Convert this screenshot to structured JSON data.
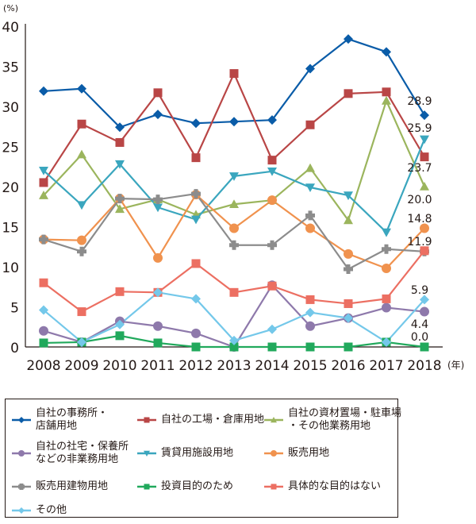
{
  "chart_data": {
    "type": "line",
    "y_unit": "(%)",
    "x_unit": "(年)",
    "ylim": [
      0,
      40
    ],
    "yticks": [
      0,
      5,
      10,
      15,
      20,
      25,
      30,
      35,
      40
    ],
    "x": [
      "2008",
      "2009",
      "2010",
      "2011",
      "2012",
      "2013",
      "2014",
      "2015",
      "2016",
      "2017",
      "2018"
    ],
    "legend_position": "bottom",
    "series": [
      {
        "name": "自社の事務所・\n店舗用地",
        "lines": [
          "自社の事務所・",
          "店舗用地"
        ],
        "color": "#0a5ca8",
        "marker": "diamond",
        "values": [
          31.9,
          32.2,
          27.4,
          29.0,
          27.9,
          28.1,
          28.3,
          34.7,
          38.4,
          36.8,
          28.9
        ],
        "end_label": "28.9"
      },
      {
        "name": "自社の工場・倉庫用地",
        "lines": [
          "自社の工場・倉庫用地"
        ],
        "color": "#b94646",
        "marker": "square",
        "values": [
          20.5,
          27.8,
          25.5,
          31.7,
          23.6,
          34.1,
          23.3,
          27.7,
          31.6,
          31.8,
          23.7
        ],
        "end_label": "23.7"
      },
      {
        "name": "自社の資材置場・駐車場\n・その他業務用地",
        "lines": [
          "自社の資材置場・駐車場",
          "・その他業務用地"
        ],
        "color": "#9bb55d",
        "marker": "triangle-up",
        "values": [
          18.9,
          24.0,
          17.2,
          18.4,
          16.5,
          17.8,
          18.3,
          22.3,
          15.8,
          30.7,
          20.0
        ],
        "end_label": "20.0"
      },
      {
        "name": "自社の社宅・保養所\nなどの非業務用地",
        "lines": [
          "自社の社宅・保養所",
          "などの非業務用地"
        ],
        "color": "#8e79ab",
        "marker": "circle",
        "values": [
          2.0,
          0.6,
          3.2,
          2.6,
          1.7,
          0.0,
          7.7,
          2.6,
          3.6,
          4.9,
          4.4
        ],
        "end_label": "4.4"
      },
      {
        "name": "賃貸用施設用地",
        "lines": [
          "賃貸用施設用地"
        ],
        "color": "#3aa6be",
        "marker": "triangle-down",
        "values": [
          22.0,
          17.7,
          22.8,
          17.4,
          15.9,
          21.3,
          21.9,
          19.9,
          18.9,
          14.3,
          25.9
        ],
        "end_label": "25.9"
      },
      {
        "name": "販売用地",
        "lines": [
          "販売用地"
        ],
        "color": "#f0924e",
        "marker": "circle",
        "values": [
          13.4,
          13.3,
          18.5,
          11.1,
          19.0,
          14.8,
          18.3,
          14.8,
          11.6,
          9.8,
          14.8
        ],
        "end_label": "14.8"
      },
      {
        "name": "販売用建物用地",
        "lines": [
          "販売用建物用地"
        ],
        "color": "#8c8c8c",
        "marker": "plus",
        "values": [
          13.4,
          11.9,
          18.5,
          18.4,
          19.1,
          12.7,
          12.7,
          16.4,
          9.7,
          12.2,
          11.9
        ],
        "end_label": "11.9"
      },
      {
        "name": "投資目的のため",
        "lines": [
          "投資目的のため"
        ],
        "color": "#21a95c",
        "marker": "square",
        "values": [
          0.5,
          0.6,
          1.4,
          0.5,
          0.0,
          0.0,
          0.0,
          0.0,
          0.0,
          0.6,
          0.0
        ],
        "end_label": "0.0"
      },
      {
        "name": "具体的な目的はない",
        "lines": [
          "具体的な目的はない"
        ],
        "color": "#ec6f62",
        "marker": "square",
        "values": [
          8.0,
          4.4,
          6.9,
          6.8,
          10.4,
          6.8,
          7.6,
          5.9,
          5.4,
          6.0,
          12.0
        ],
        "end_label": null
      },
      {
        "name": "その他",
        "lines": [
          "その他"
        ],
        "color": "#74c8ea",
        "marker": "diamond",
        "values": [
          4.6,
          0.6,
          2.8,
          6.8,
          6.0,
          0.8,
          2.2,
          4.3,
          3.6,
          0.6,
          5.9
        ],
        "end_label": "5.9"
      }
    ]
  }
}
